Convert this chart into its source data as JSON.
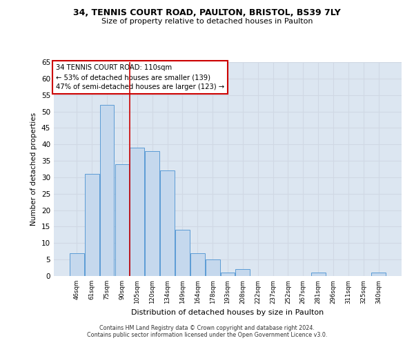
{
  "title1": "34, TENNIS COURT ROAD, PAULTON, BRISTOL, BS39 7LY",
  "title2": "Size of property relative to detached houses in Paulton",
  "xlabel": "Distribution of detached houses by size in Paulton",
  "ylabel": "Number of detached properties",
  "categories": [
    "46sqm",
    "61sqm",
    "75sqm",
    "90sqm",
    "105sqm",
    "120sqm",
    "134sqm",
    "149sqm",
    "164sqm",
    "178sqm",
    "193sqm",
    "208sqm",
    "222sqm",
    "237sqm",
    "252sqm",
    "267sqm",
    "281sqm",
    "296sqm",
    "311sqm",
    "325sqm",
    "340sqm"
  ],
  "values": [
    7,
    31,
    52,
    34,
    39,
    38,
    32,
    14,
    7,
    5,
    1,
    2,
    0,
    0,
    0,
    0,
    1,
    0,
    0,
    0,
    1
  ],
  "bar_color": "#c5d8ed",
  "bar_edge_color": "#5b9bd5",
  "grid_color": "#d0d8e4",
  "background_color": "#dce6f1",
  "vline_x": 3.5,
  "vline_color": "#cc0000",
  "annotation_text": "34 TENNIS COURT ROAD: 110sqm\n← 53% of detached houses are smaller (139)\n47% of semi-detached houses are larger (123) →",
  "annotation_box_color": "white",
  "annotation_box_edge": "#cc0000",
  "ylim": [
    0,
    65
  ],
  "yticks": [
    0,
    5,
    10,
    15,
    20,
    25,
    30,
    35,
    40,
    45,
    50,
    55,
    60,
    65
  ],
  "footer1": "Contains HM Land Registry data © Crown copyright and database right 2024.",
  "footer2": "Contains public sector information licensed under the Open Government Licence v3.0."
}
